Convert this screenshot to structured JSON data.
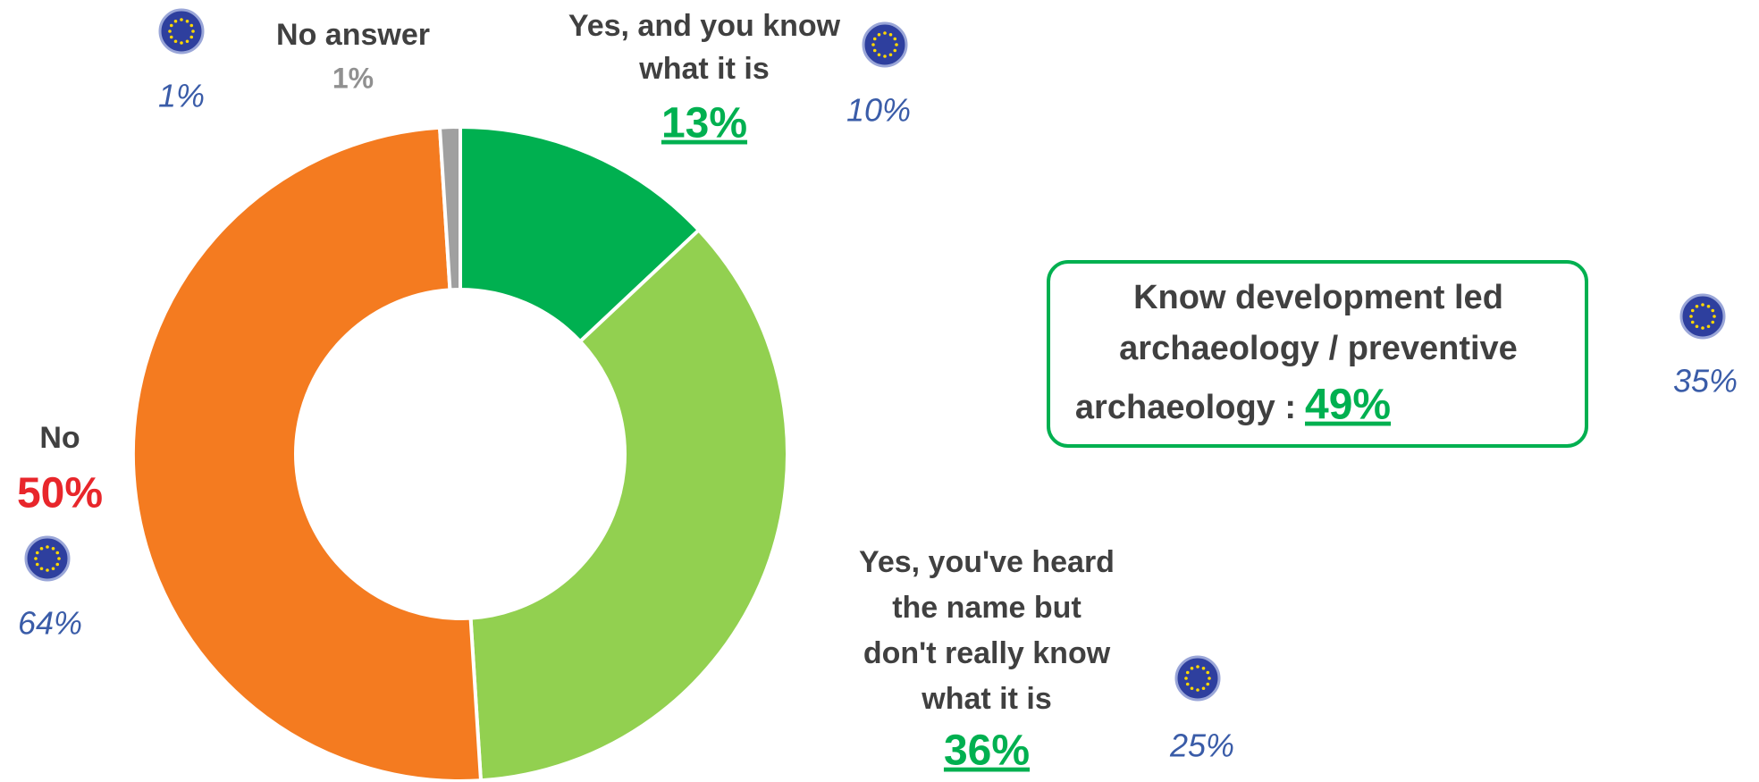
{
  "chart_data": {
    "type": "donut",
    "labels": [
      [
        "Yes, and you know",
        "what it is"
      ],
      [
        "Yes, you've heard",
        "the name but",
        "don't really know",
        "what it is"
      ],
      [
        "No"
      ],
      [
        "No answer"
      ]
    ],
    "values": [
      13,
      36,
      50,
      1
    ],
    "value_labels": [
      "13%",
      "36%",
      "50%",
      "1%"
    ],
    "colors": [
      "#00b050",
      "#92d050",
      "#f47b20",
      "#a0a0a0"
    ],
    "label_colors": [
      "#00b050",
      "#00b050",
      "#e8262b",
      "#909090"
    ],
    "eu_values": [
      10,
      25,
      64,
      1
    ],
    "eu_value_labels": [
      "10%",
      "25%",
      "64%",
      "1%"
    ],
    "summary": {
      "lines": [
        "Know development led",
        "archaeology / preventive",
        "archaeology :"
      ],
      "value": "49%",
      "eu_value": "35%"
    }
  }
}
